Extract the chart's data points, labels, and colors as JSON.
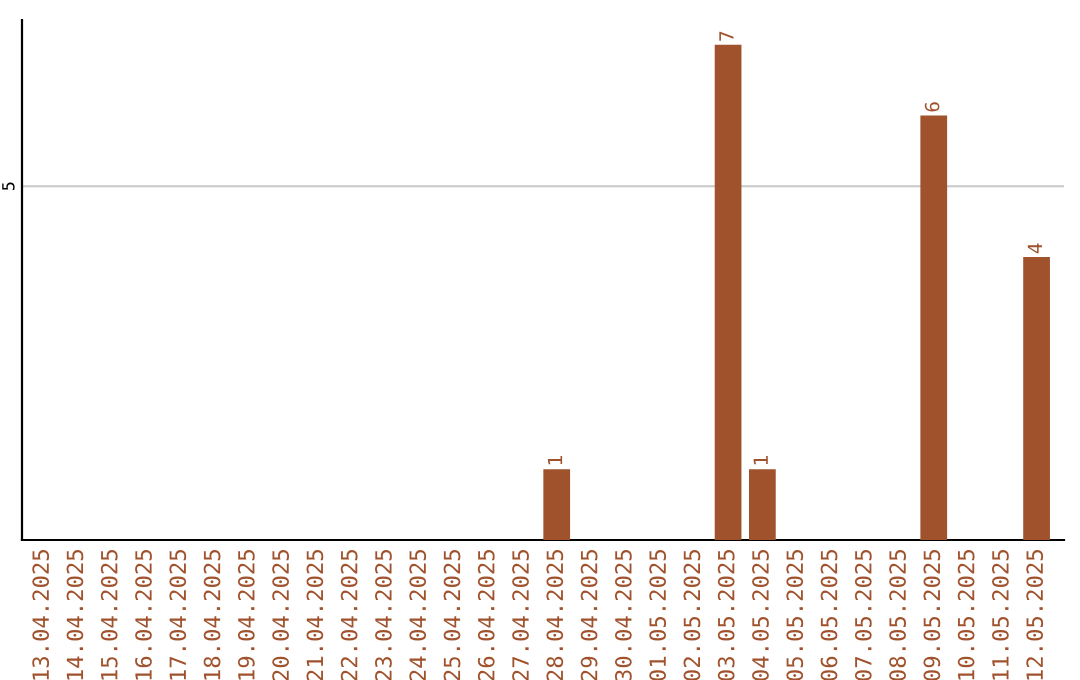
{
  "chart_data": {
    "type": "bar",
    "categories": [
      "13.04.2025",
      "14.04.2025",
      "15.04.2025",
      "16.04.2025",
      "17.04.2025",
      "18.04.2025",
      "19.04.2025",
      "20.04.2025",
      "21.04.2025",
      "22.04.2025",
      "23.04.2025",
      "24.04.2025",
      "25.04.2025",
      "26.04.2025",
      "27.04.2025",
      "28.04.2025",
      "29.04.2025",
      "30.04.2025",
      "01.05.2025",
      "02.05.2025",
      "03.05.2025",
      "04.05.2025",
      "05.05.2025",
      "06.05.2025",
      "07.05.2025",
      "08.05.2025",
      "09.05.2025",
      "10.05.2025",
      "11.05.2025",
      "12.05.2025"
    ],
    "values": [
      null,
      null,
      null,
      null,
      null,
      null,
      null,
      null,
      null,
      null,
      null,
      null,
      null,
      null,
      null,
      1,
      null,
      null,
      null,
      null,
      7,
      1,
      null,
      null,
      null,
      null,
      6,
      null,
      null,
      4
    ],
    "data_labels": true,
    "color": "#a0522d",
    "ref_lines": [
      {
        "axis": "y",
        "value": 5,
        "label": "5",
        "color": "#c8c8c8"
      }
    ],
    "legend": false
  }
}
